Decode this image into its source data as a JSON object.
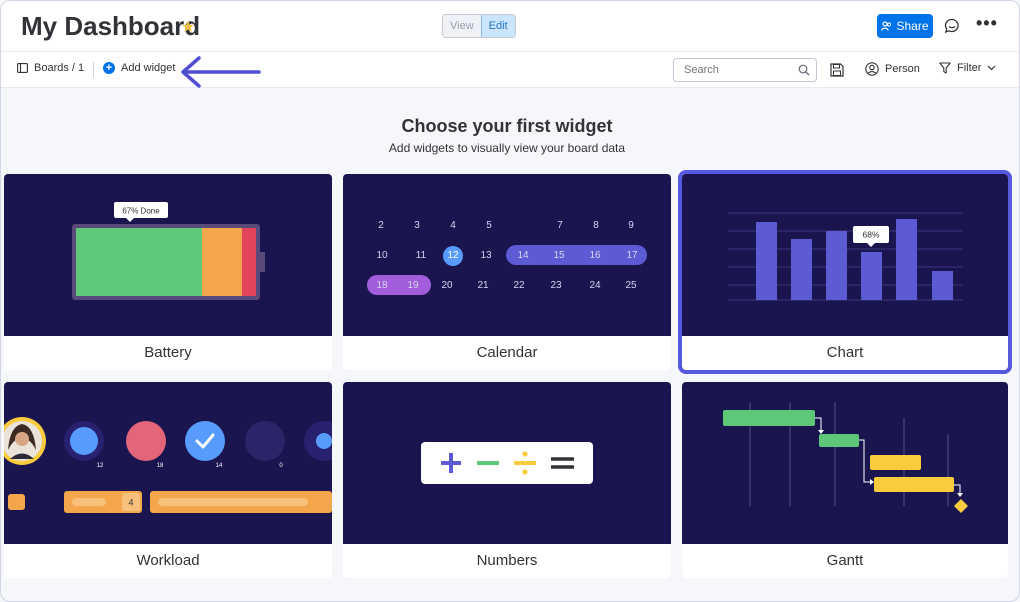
{
  "header": {
    "title": "My Dashboard",
    "view_label": "View",
    "edit_label": "Edit",
    "share_label": "Share"
  },
  "toolbar": {
    "boards_label": "Boards / 1",
    "add_widget_label": "Add widget",
    "search_placeholder": "Search",
    "person_label": "Person",
    "filter_label": "Filter"
  },
  "intro": {
    "title": "Choose your first widget",
    "subtitle": "Add widgets to visually view your board data"
  },
  "widgets": [
    {
      "label": "Battery",
      "battery_tooltip": "67% Done",
      "done_fraction": 0.67
    },
    {
      "label": "Calendar",
      "days_row1": [
        "2",
        "3",
        "4",
        "5",
        "7",
        "8",
        "9"
      ],
      "days_row2": [
        "10",
        "11",
        "12",
        "13",
        "14",
        "15",
        "16",
        "17"
      ],
      "days_row3": [
        "18",
        "19",
        "20",
        "21",
        "22",
        "23",
        "24",
        "25"
      ]
    },
    {
      "label": "Chart",
      "tooltip": "68%"
    },
    {
      "label": "Workload",
      "counts": [
        "12",
        "18",
        "14",
        "0"
      ],
      "bar_number": "4"
    },
    {
      "label": "Numbers"
    },
    {
      "label": "Gantt"
    }
  ],
  "colors": {
    "primary": "#0073ea",
    "widget_bg": "#1b154f",
    "highlight": "#5559df",
    "green": "#5cc878",
    "orange": "#f4a74a",
    "yellow": "#f8cc3c",
    "purple_bar": "#5c5bd4"
  },
  "icons": [
    "star-icon",
    "share-icon",
    "chat-icon",
    "more-icon",
    "boards-icon",
    "plus-icon",
    "arrow-left-icon",
    "search-icon",
    "save-icon",
    "person-icon",
    "filter-icon",
    "chevron-down-icon"
  ]
}
